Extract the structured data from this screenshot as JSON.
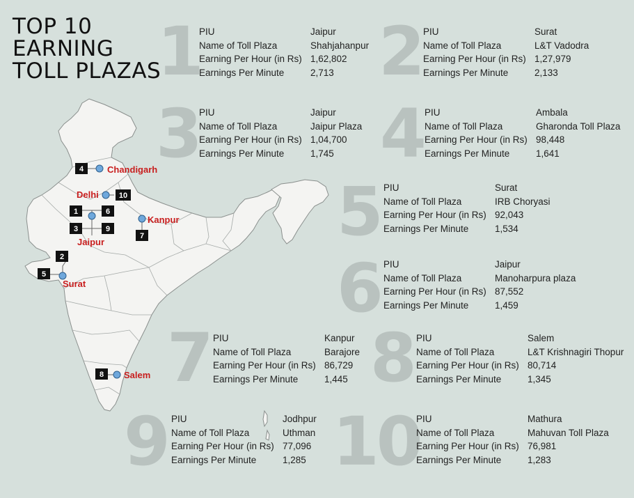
{
  "title_lines": [
    "TOP 10",
    "EARNING",
    "TOLL PLAZAS"
  ],
  "field_labels": {
    "piu": "PIU",
    "plaza": "Name of Toll Plaza",
    "per_hour": "Earning Per Hour (in Rs)",
    "per_minute": "Earnings Per Minute"
  },
  "plazas": [
    {
      "rank": "1",
      "piu": "Jaipur",
      "plaza": "Shahjahanpur",
      "per_hour": "1,62,802",
      "per_minute": "2,713"
    },
    {
      "rank": "2",
      "piu": "Surat",
      "plaza": "L&T Vadodra",
      "per_hour": "1,27,979",
      "per_minute": "2,133"
    },
    {
      "rank": "3",
      "piu": "Jaipur",
      "plaza": "Jaipur Plaza",
      "per_hour": "1,04,700",
      "per_minute": "1,745"
    },
    {
      "rank": "4",
      "piu": "Ambala",
      "plaza": "Gharonda Toll Plaza",
      "per_hour": "98,448",
      "per_minute": "1,641"
    },
    {
      "rank": "5",
      "piu": "Surat",
      "plaza": "IRB Choryasi",
      "per_hour": "92,043",
      "per_minute": "1,534"
    },
    {
      "rank": "6",
      "piu": "Jaipur",
      "plaza": "Manoharpura plaza",
      "per_hour": "87,552",
      "per_minute": "1,459"
    },
    {
      "rank": "7",
      "piu": "Kanpur",
      "plaza": "Barajore",
      "per_hour": "86,729",
      "per_minute": "1,445"
    },
    {
      "rank": "8",
      "piu": "Salem",
      "plaza": "L&T Krishnagiri Thopur",
      "per_hour": "80,714",
      "per_minute": "1,345"
    },
    {
      "rank": "9",
      "piu": "Jodhpur",
      "plaza": "Uthman",
      "per_hour": "77,096",
      "per_minute": "1,285"
    },
    {
      "rank": "10",
      "piu": "Mathura",
      "plaza": "Mahuvan Toll Plaza",
      "per_hour": "76,981",
      "per_minute": "1,283"
    }
  ],
  "map": {
    "cities": {
      "chandigarh": "Chandigarh",
      "delhi": "Delhi",
      "jaipur": "Jaipur",
      "kanpur": "Kanpur",
      "surat": "Surat",
      "salem": "Salem"
    },
    "badges": [
      "1",
      "2",
      "3",
      "4",
      "5",
      "6",
      "7",
      "8",
      "9",
      "10"
    ],
    "colors": {
      "label": "#c81e1e",
      "badge": "#111111",
      "pin": "#6fa8dc",
      "land": "#f4f4f2"
    }
  }
}
